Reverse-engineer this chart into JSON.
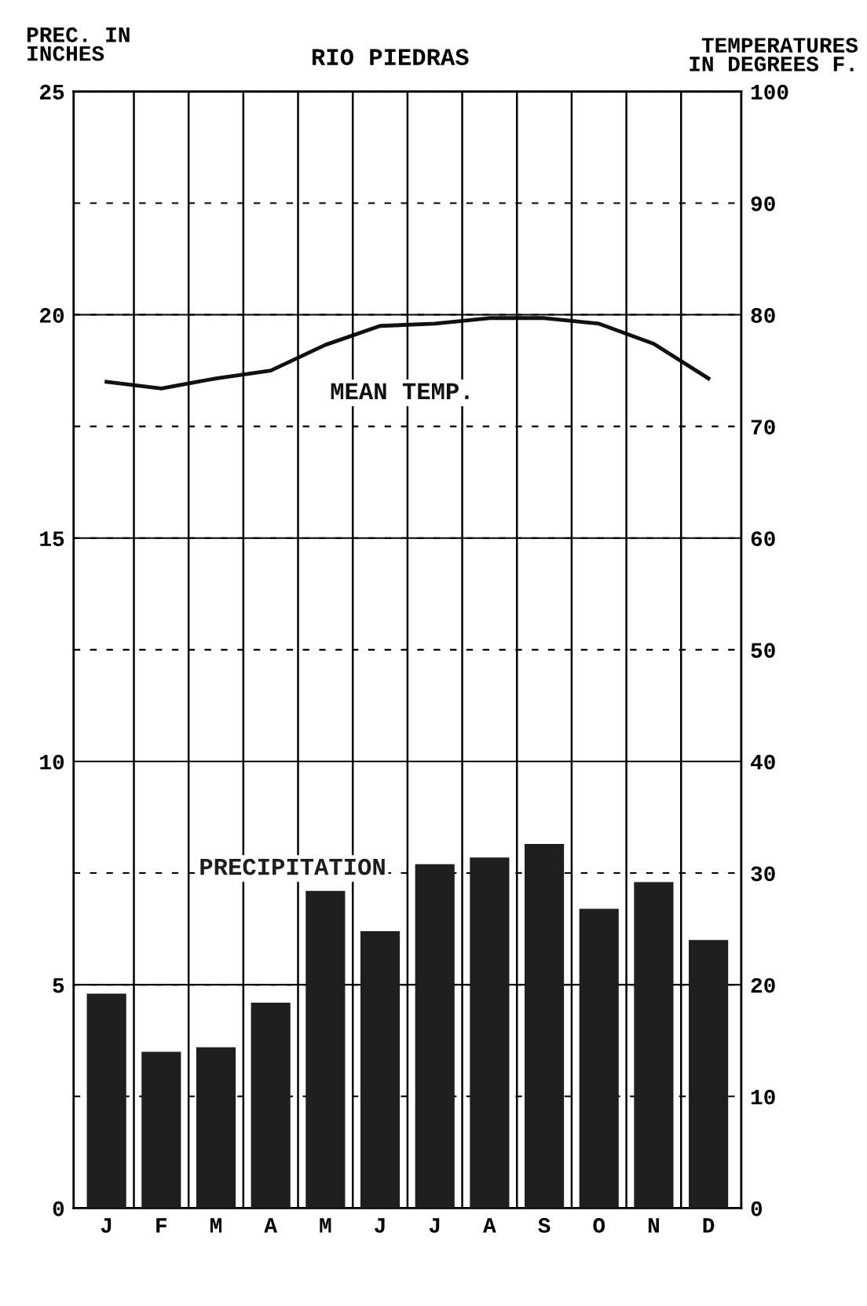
{
  "chart_data": {
    "type": "bar",
    "title": "RIO PIEDRAS",
    "ylabel": "PREC. IN\nINCHES",
    "y2label": "TEMPERATURES\nIN DEGREES F.",
    "categories": [
      "J",
      "F",
      "M",
      "A",
      "M",
      "J",
      "J",
      "A",
      "S",
      "O",
      "N",
      "D"
    ],
    "series": [
      {
        "name": "PRECIPITATION",
        "color": "#1e1e1e",
        "values": [
          4.8,
          3.5,
          3.6,
          4.6,
          7.1,
          6.2,
          7.7,
          7.85,
          8.15,
          6.7,
          7.3,
          6.0
        ]
      },
      {
        "name": "MEAN TEMP.",
        "type": "line",
        "axis": "y2",
        "color": "#111111",
        "values": [
          74,
          73.4,
          74.3,
          75,
          77.3,
          79,
          79.2,
          79.7,
          79.7,
          79.2,
          77.4,
          74.3
        ]
      }
    ],
    "ylim": [
      0,
      25
    ],
    "yticks": [
      0,
      5,
      10,
      15,
      20,
      25
    ],
    "y2lim": [
      0,
      100
    ],
    "y2ticks": [
      0,
      10,
      20,
      30,
      40,
      50,
      60,
      70,
      80,
      90,
      100
    ],
    "grid": true,
    "legend": false,
    "marker": "none",
    "line_style": "solid"
  }
}
